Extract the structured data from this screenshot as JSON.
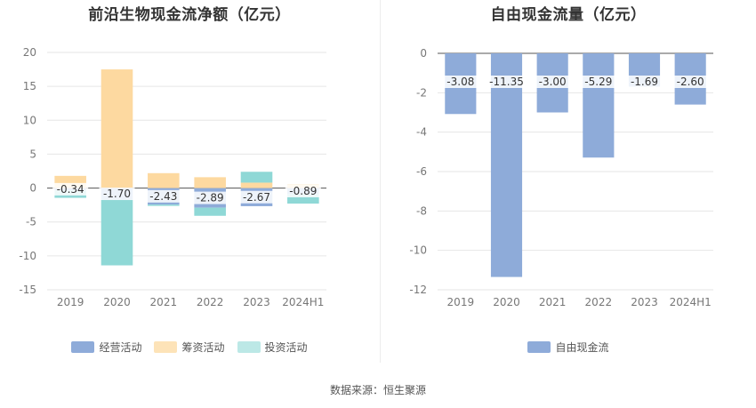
{
  "chart_data": [
    {
      "type": "bar",
      "stacked": true,
      "title": "前沿生物现金流净额（亿元）",
      "categories": [
        "2019",
        "2020",
        "2021",
        "2022",
        "2023",
        "2024H1"
      ],
      "ylim": [
        -15,
        20
      ],
      "yticks": [
        20,
        15,
        10,
        5,
        0,
        -5,
        -10,
        -15
      ],
      "grid": true,
      "legend_position": "bottom",
      "series": [
        {
          "name": "经营活动",
          "color": "#8eabd9",
          "values": [
            -0.34,
            -1.7,
            -2.43,
            -2.89,
            -2.67,
            -0.89
          ]
        },
        {
          "name": "筹资活动",
          "color": "#fdd9a0",
          "values": [
            1.8,
            17.5,
            2.2,
            1.6,
            0.8,
            0.5
          ]
        },
        {
          "name": "投资活动",
          "color": "#8fd8d6",
          "values": [
            -1.1,
            -9.7,
            -0.2,
            -1.2,
            1.6,
            -1.4
          ]
        }
      ],
      "data_labels": [
        "-0.34",
        "-1.70",
        "-2.43",
        "-2.89",
        "-2.67",
        "-0.89"
      ]
    },
    {
      "type": "bar",
      "title": "自由现金流量（亿元）",
      "categories": [
        "2019",
        "2020",
        "2021",
        "2022",
        "2023",
        "2024H1"
      ],
      "ylim": [
        -12,
        0
      ],
      "yticks": [
        0,
        -2,
        -4,
        -6,
        -8,
        -10,
        -12
      ],
      "grid": true,
      "legend_position": "bottom",
      "series": [
        {
          "name": "自由现金流",
          "color": "#8eabd9",
          "values": [
            -3.08,
            -11.35,
            -3.0,
            -5.29,
            -1.69,
            -2.6
          ]
        }
      ],
      "data_labels": [
        "-3.08",
        "-11.35",
        "-3.00",
        "-5.29",
        "-1.69",
        "-2.60"
      ]
    }
  ],
  "source": "数据来源：恒生聚源"
}
